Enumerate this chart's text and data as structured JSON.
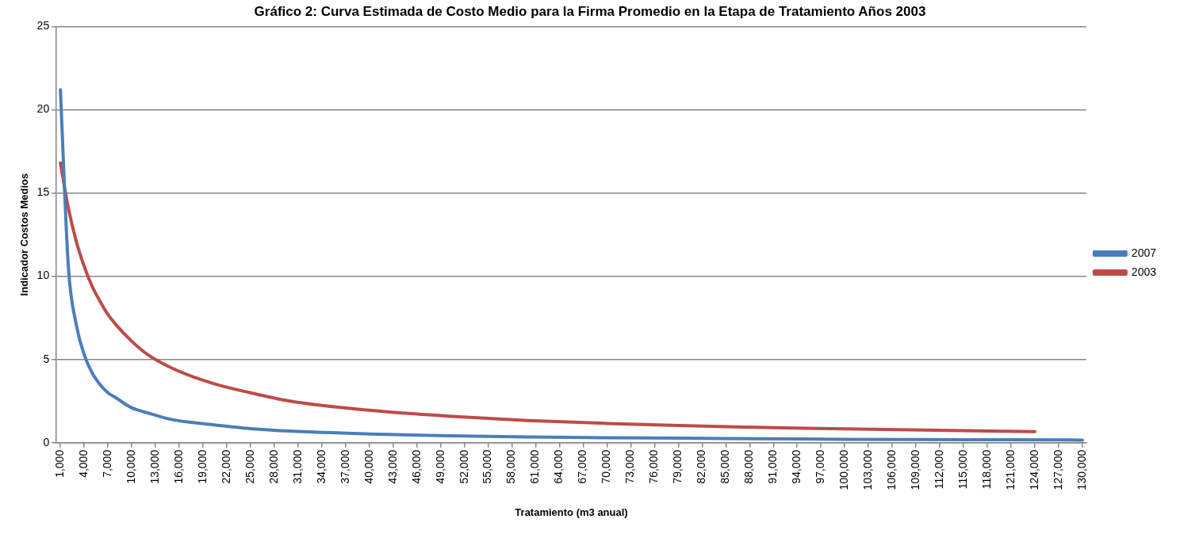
{
  "chart_data": {
    "type": "line",
    "title": "Gráfico 2: Curva Estimada de Costo Medio para la Firma Promedio en la Etapa de Tratamiento Años 2003",
    "xlabel": "Tratamiento (m3 anual)",
    "ylabel": "Indicador Costos Medios",
    "series": [
      {
        "name": "2007",
        "color": "#4a7ebb",
        "x": [
          1000,
          2000,
          3000,
          4000,
          5000,
          6000,
          7000,
          8000,
          10000,
          12000,
          15000,
          20000,
          25000,
          30000,
          40000,
          50000,
          60000,
          70000,
          80000,
          90000,
          100000,
          110000,
          120000,
          130000
        ],
        "values": [
          21.2,
          10.6,
          7.1,
          5.3,
          4.2,
          3.5,
          3.0,
          2.7,
          2.1,
          1.8,
          1.4,
          1.1,
          0.85,
          0.7,
          0.53,
          0.42,
          0.35,
          0.3,
          0.27,
          0.24,
          0.21,
          0.19,
          0.18,
          0.16
        ]
      },
      {
        "name": "2003",
        "color": "#be4b48",
        "x": [
          1000,
          2000,
          3000,
          4000,
          5000,
          6000,
          7000,
          8000,
          10000,
          12000,
          15000,
          20000,
          25000,
          30000,
          40000,
          50000,
          60000,
          70000,
          80000,
          90000,
          100000,
          110000,
          120000,
          124000
        ],
        "values": [
          16.8,
          14.1,
          12.1,
          10.6,
          9.4,
          8.5,
          7.7,
          7.1,
          6.1,
          5.3,
          4.5,
          3.6,
          3.0,
          2.5,
          1.95,
          1.6,
          1.34,
          1.16,
          1.02,
          0.92,
          0.83,
          0.76,
          0.69,
          0.67
        ]
      }
    ],
    "xlim": [
      500,
      130500
    ],
    "xticks": [
      {
        "value": 1000,
        "label": "1,000"
      },
      {
        "value": 4000,
        "label": "4,000"
      },
      {
        "value": 7000,
        "label": "7,000"
      },
      {
        "value": 10000,
        "label": "10,000"
      },
      {
        "value": 13000,
        "label": "13,000"
      },
      {
        "value": 16000,
        "label": "16,000"
      },
      {
        "value": 19000,
        "label": "19,000"
      },
      {
        "value": 22000,
        "label": "22,000"
      },
      {
        "value": 25000,
        "label": "25,000"
      },
      {
        "value": 28000,
        "label": "28,000"
      },
      {
        "value": 31000,
        "label": "31,000"
      },
      {
        "value": 34000,
        "label": "34,000"
      },
      {
        "value": 37000,
        "label": "37,000"
      },
      {
        "value": 40000,
        "label": "40,000"
      },
      {
        "value": 43000,
        "label": "43,000"
      },
      {
        "value": 46000,
        "label": "46,000"
      },
      {
        "value": 49000,
        "label": "49,000"
      },
      {
        "value": 52000,
        "label": "52,000"
      },
      {
        "value": 55000,
        "label": "55,000"
      },
      {
        "value": 58000,
        "label": "58,000"
      },
      {
        "value": 61000,
        "label": "61,000"
      },
      {
        "value": 64000,
        "label": "64,000"
      },
      {
        "value": 67000,
        "label": "67,000"
      },
      {
        "value": 70000,
        "label": "70,000"
      },
      {
        "value": 73000,
        "label": "73,000"
      },
      {
        "value": 76000,
        "label": "76,000"
      },
      {
        "value": 79000,
        "label": "79,000"
      },
      {
        "value": 82000,
        "label": "82,000"
      },
      {
        "value": 85000,
        "label": "85,000"
      },
      {
        "value": 88000,
        "label": "88,000"
      },
      {
        "value": 91000,
        "label": "91,000"
      },
      {
        "value": 94000,
        "label": "94,000"
      },
      {
        "value": 97000,
        "label": "97,000"
      },
      {
        "value": 100000,
        "label": "100,000"
      },
      {
        "value": 103000,
        "label": "103,000"
      },
      {
        "value": 106000,
        "label": "106,000"
      },
      {
        "value": 109000,
        "label": "109,000"
      },
      {
        "value": 112000,
        "label": "112,000"
      },
      {
        "value": 115000,
        "label": "115,000"
      },
      {
        "value": 118000,
        "label": "118,000"
      },
      {
        "value": 121000,
        "label": "121,000"
      },
      {
        "value": 124000,
        "label": "124,000"
      },
      {
        "value": 127000,
        "label": "127,000"
      },
      {
        "value": 130000,
        "label": "130,000"
      }
    ],
    "ylim": [
      0,
      25
    ],
    "yticks": [
      0,
      5,
      10,
      15,
      20,
      25
    ],
    "grid": "y",
    "legend": "right",
    "marker": "none",
    "line_style": "solid"
  }
}
